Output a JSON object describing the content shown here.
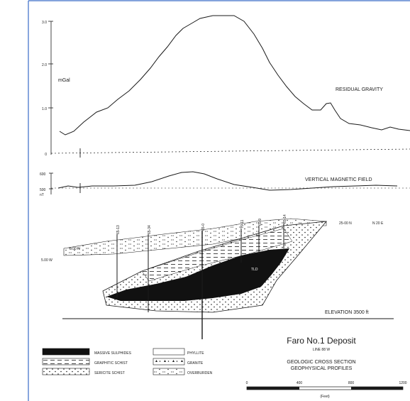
{
  "gravity": {
    "axis_ticks": [
      "3.0",
      "2.0",
      "1.0",
      "0"
    ],
    "unit": "mGal",
    "title": "RESIDUAL GRAVITY"
  },
  "magnetic": {
    "axis_ticks": [
      "600",
      "500"
    ],
    "unit": "nT",
    "title": "VERTICAL MAGNETIC FIELD"
  },
  "section": {
    "drill_holes": [
      "65-13",
      "65-34",
      "65-0",
      "70-11",
      "65-9",
      "65-14"
    ],
    "grid_left": "5.00 N",
    "grid_left_sub": "5.00 W",
    "grid_right": "25-00 N",
    "bearing": "N 20 E",
    "ore_label": "TLD",
    "elevation": "ELEVATION 3500 ft"
  },
  "legend": [
    {
      "label": "MASSIVE SULPHIDES",
      "pattern": "solid-black"
    },
    {
      "label": "PHYLLITE",
      "pattern": "blank"
    },
    {
      "label": "GRAPHITIC SCHIST",
      "pattern": "dashes"
    },
    {
      "label": "GRANITE",
      "pattern": "triangles"
    },
    {
      "label": "SERICITE SCHIST",
      "pattern": "dots"
    },
    {
      "label": "OVERBURDEN",
      "pattern": "dashes-dots"
    }
  ],
  "title_block": {
    "title": "Faro No.1 Deposit",
    "line": "LINE 88 W",
    "subtitle_1": "GEOLOGIC CROSS SECTION",
    "subtitle_2": "GEOPHYSICAL PROFILES"
  },
  "scale": {
    "ticks": [
      "0",
      "400",
      "800",
      "1200"
    ],
    "unit": "(Feet)"
  },
  "colors": {
    "frame": "#3a6cc8",
    "ink": "#1a1a1a"
  }
}
